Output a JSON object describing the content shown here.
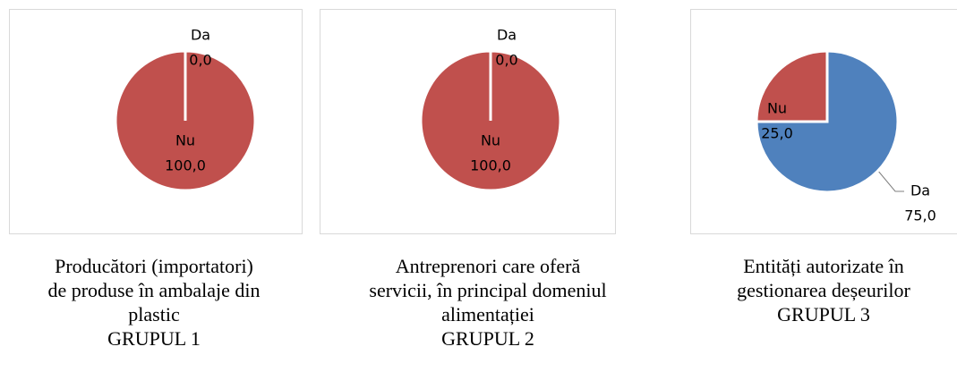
{
  "chart_data": [
    {
      "type": "pie",
      "categories": [
        "Da",
        "Nu"
      ],
      "values": [
        0,
        100
      ],
      "value_labels": [
        "0,0",
        "100,0"
      ],
      "colors": [
        "#4f81bd",
        "#c0504d"
      ],
      "caption": [
        "Producători (importatori)",
        "de produse în ambalaje din",
        "plastic",
        "GRUPUL 1"
      ]
    },
    {
      "type": "pie",
      "categories": [
        "Da",
        "Nu"
      ],
      "values": [
        0,
        100
      ],
      "value_labels": [
        "0,0",
        "100,0"
      ],
      "colors": [
        "#4f81bd",
        "#c0504d"
      ],
      "caption": [
        "Antreprenori care oferă",
        "servicii, în principal domeniul",
        "alimentației",
        "GRUPUL 2"
      ]
    },
    {
      "type": "pie",
      "categories": [
        "Da",
        "Nu"
      ],
      "values": [
        75,
        25
      ],
      "value_labels": [
        "75,0",
        "25,0"
      ],
      "colors": [
        "#4f81bd",
        "#c0504d"
      ],
      "caption": [
        "Entități autorizate în",
        "gestionarea deșeurilor",
        "GRUPUL 3"
      ]
    }
  ]
}
